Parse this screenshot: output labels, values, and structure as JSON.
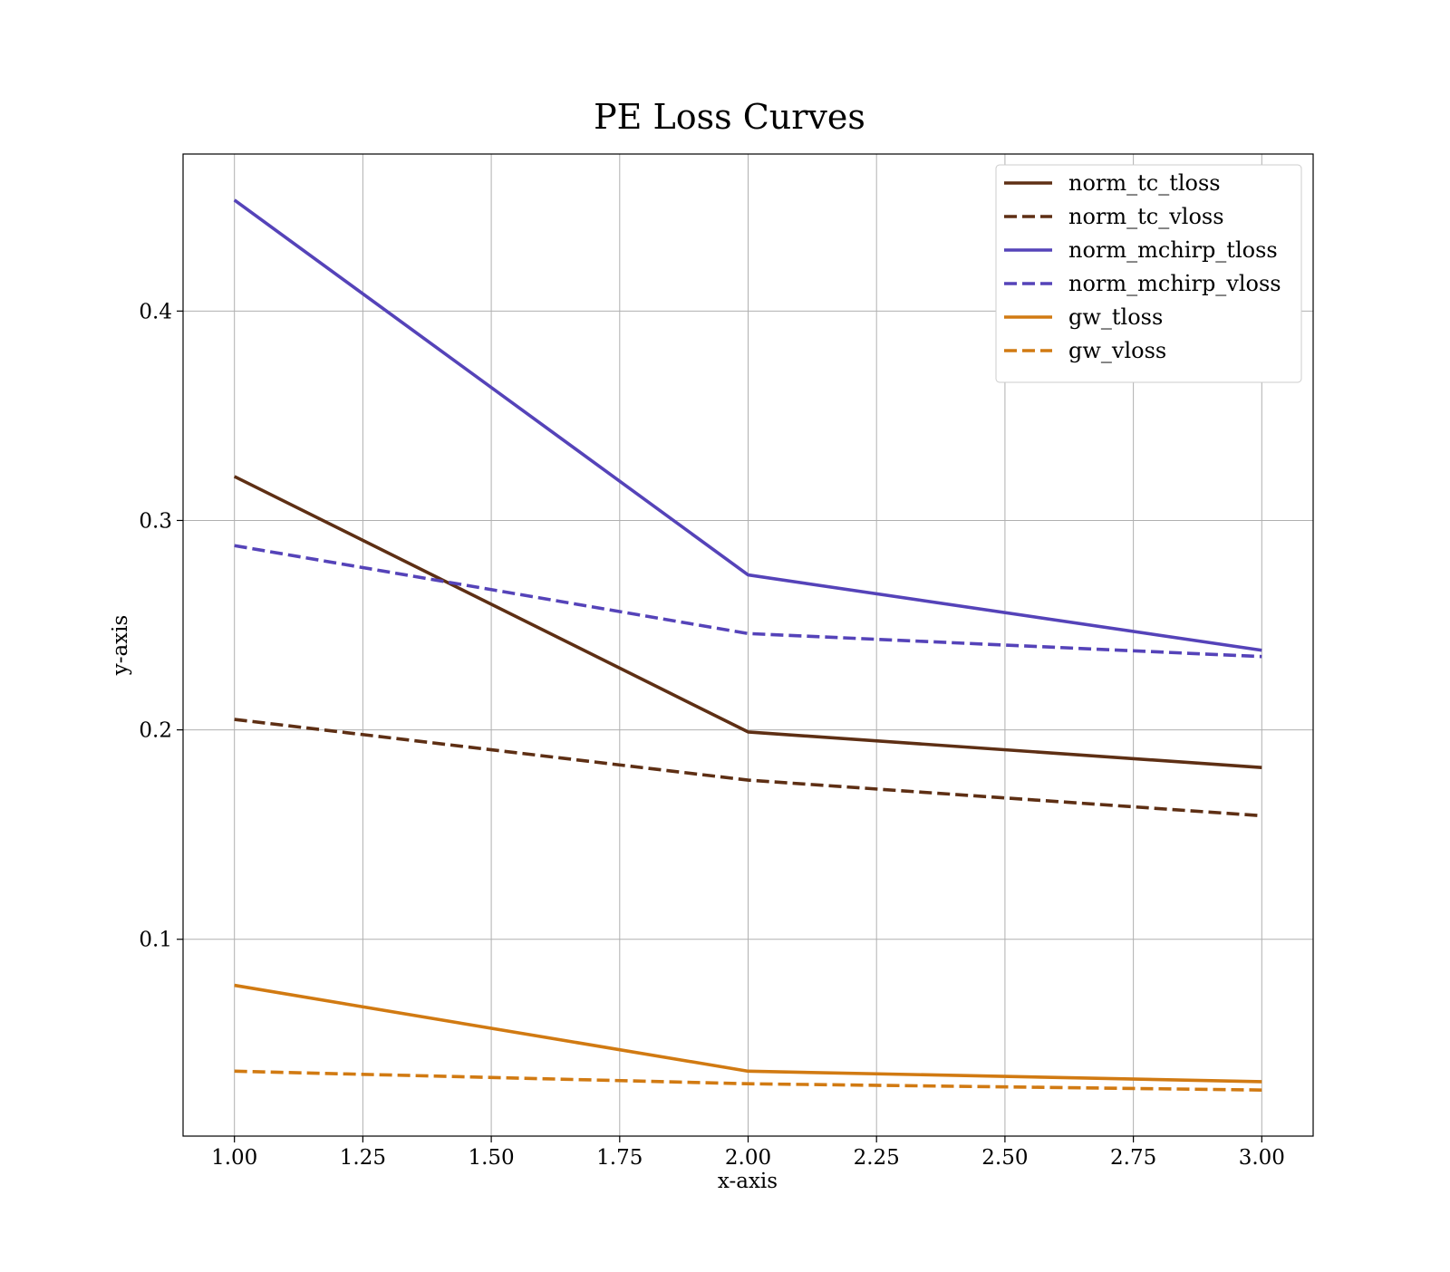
{
  "chart_data": {
    "type": "line",
    "title": "PE Loss Curves",
    "xlabel": "x-axis",
    "ylabel": "y-axis",
    "xlim": [
      0.9,
      3.1
    ],
    "ylim": [
      0.006,
      0.475
    ],
    "xticks": [
      1.0,
      1.25,
      1.5,
      1.75,
      2.0,
      2.25,
      2.5,
      2.75,
      3.0
    ],
    "xtick_labels": [
      "1.00",
      "1.25",
      "1.50",
      "1.75",
      "2.00",
      "2.25",
      "2.50",
      "2.75",
      "3.00"
    ],
    "yticks": [
      0.1,
      0.2,
      0.3,
      0.4
    ],
    "ytick_labels": [
      "0.1",
      "0.2",
      "0.3",
      "0.4"
    ],
    "grid": true,
    "legend_position": "top-right",
    "x": [
      1,
      2,
      3
    ],
    "series": [
      {
        "name": "norm_tc_tloss",
        "color": "#5e2f14",
        "dashed": false,
        "values": [
          0.321,
          0.199,
          0.182
        ]
      },
      {
        "name": "norm_tc_vloss",
        "color": "#5e2f14",
        "dashed": true,
        "values": [
          0.205,
          0.176,
          0.159
        ]
      },
      {
        "name": "norm_mchirp_tloss",
        "color": "#5543b9",
        "dashed": false,
        "values": [
          0.453,
          0.274,
          0.238
        ]
      },
      {
        "name": "norm_mchirp_vloss",
        "color": "#5543b9",
        "dashed": true,
        "values": [
          0.288,
          0.246,
          0.235
        ]
      },
      {
        "name": "gw_tloss",
        "color": "#d17a12",
        "dashed": false,
        "values": [
          0.078,
          0.037,
          0.032
        ]
      },
      {
        "name": "gw_vloss",
        "color": "#d17a12",
        "dashed": true,
        "values": [
          0.037,
          0.031,
          0.028
        ]
      }
    ]
  }
}
